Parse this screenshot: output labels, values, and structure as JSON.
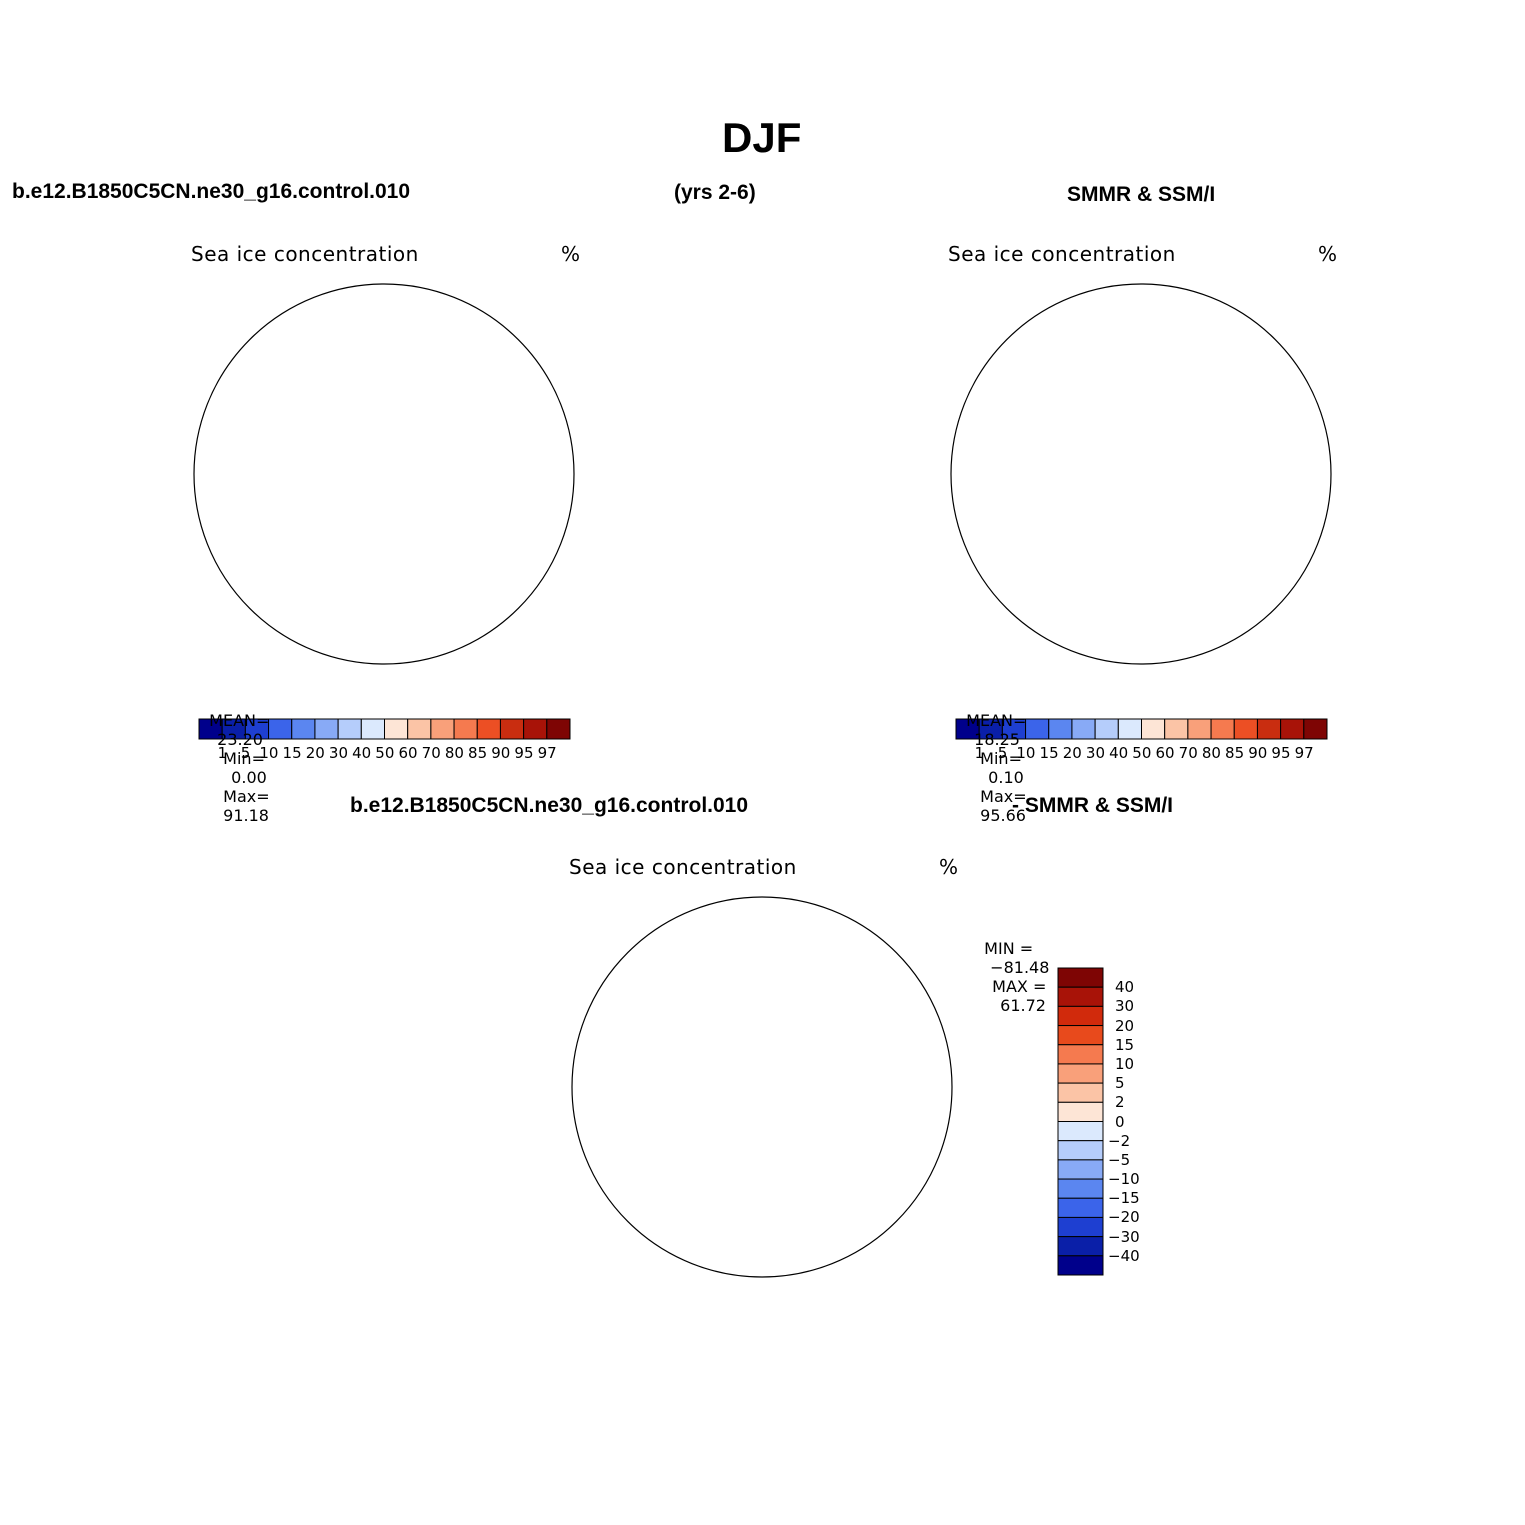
{
  "figure": {
    "title": "DJF",
    "left_header": "b.e12.B1850C5CN.ne30_g16.control.010",
    "center_header": "(yrs 2-6)",
    "right_header": "SMMR & SSM/I",
    "diff_header_left": "b.e12.B1850C5CN.ne30_g16.control.010",
    "diff_header_right": "- SMMR & SSM/I"
  },
  "panels": {
    "model": {
      "title": "Sea ice concentration",
      "units": "%",
      "mean_label": "MEAN=",
      "mean": "23.20",
      "min_label": "Min=",
      "min": "0.00",
      "max_label": "Max=",
      "max": "91.18"
    },
    "obs": {
      "title": "Sea ice concentration",
      "units": "%",
      "mean_label": "MEAN=",
      "mean": "18.25",
      "min_label": "Min=",
      "min": "0.10",
      "max_label": "Max=",
      "max": "95.66"
    },
    "diff": {
      "title": "Sea ice concentration",
      "units": "%",
      "min_label": "MIN =",
      "min": "−81.48",
      "max_label": "MAX =",
      "max": "61.72"
    }
  },
  "colorbars": {
    "concentration": {
      "levels": [
        "1",
        "5",
        "10",
        "15",
        "20",
        "30",
        "40",
        "50",
        "60",
        "70",
        "80",
        "85",
        "90",
        "95",
        "97"
      ],
      "colors": [
        "#00008b",
        "#0a1fa8",
        "#1e3fd1",
        "#3b64ea",
        "#5b86f0",
        "#88aaf6",
        "#b5cdfb",
        "#dbe9fd",
        "#fde5d6",
        "#fbc4a6",
        "#f9a07a",
        "#f57a4f",
        "#ec4f24",
        "#c92d10",
        "#a81308",
        "#7e0504"
      ]
    },
    "difference": {
      "levels": [
        "40",
        "30",
        "20",
        "15",
        "10",
        "5",
        "2",
        "0",
        "−2",
        "−5",
        "−10",
        "−15",
        "−20",
        "−30",
        "−40"
      ],
      "colors": [
        "#7e0504",
        "#a81308",
        "#d12a0c",
        "#e84a1c",
        "#f57a4f",
        "#f9a07a",
        "#fbc4a6",
        "#fde5d6",
        "#dbe9fd",
        "#b5cdfb",
        "#88aaf6",
        "#5b86f0",
        "#3b64ea",
        "#1e3fd1",
        "#0a1fa8",
        "#00008b"
      ]
    }
  },
  "colors": {
    "land": "#ffffff",
    "coast": "#000000",
    "deep_blue": "#00008b",
    "mid_blue": "#3b64ea",
    "light_blue": "#b5cdfb",
    "pale_blue": "#dbe9fd",
    "pale_red": "#fbc4a6",
    "mid_red": "#f57a4f",
    "red": "#d12a0c",
    "dark_red": "#8b0a05"
  }
}
